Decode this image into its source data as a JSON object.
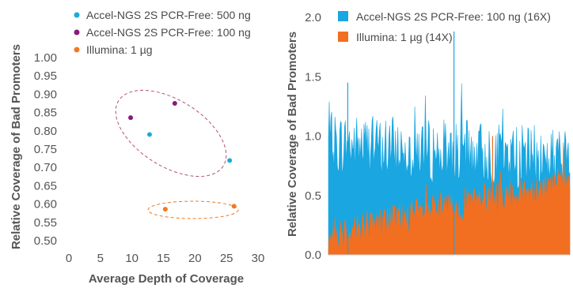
{
  "chart_data": [
    {
      "type": "scatter",
      "xlabel": "Average Depth of Coverage",
      "ylabel": "Relative Coverage of Bad Promoters",
      "xlim": [
        0,
        30
      ],
      "ylim": [
        0.5,
        1.0
      ],
      "xticks": [
        "0",
        "5",
        "10",
        "15",
        "20",
        "25",
        "30"
      ],
      "yticks": [
        "0.50",
        "0.55",
        "0.60",
        "0.65",
        "0.70",
        "0.75",
        "0.80",
        "0.85",
        "0.90",
        "0.95",
        "1.00"
      ],
      "grid": false,
      "legend_position": "top-left",
      "series": [
        {
          "name": "Accel-NGS 2S PCR-Free: 500 ng",
          "color": "#1aabd9",
          "points": [
            {
              "x": 12.8,
              "y": 0.79
            },
            {
              "x": 25.5,
              "y": 0.719
            }
          ]
        },
        {
          "name": "Accel-NGS 2S PCR-Free: 100 ng",
          "color": "#8a1a7a",
          "points": [
            {
              "x": 9.8,
              "y": 0.836
            },
            {
              "x": 16.8,
              "y": 0.875
            }
          ]
        },
        {
          "name": "Illumina: 1 µg",
          "color": "#f07a22",
          "points": [
            {
              "x": 15.3,
              "y": 0.586
            },
            {
              "x": 26.2,
              "y": 0.594
            }
          ]
        }
      ]
    },
    {
      "type": "area",
      "xlabel": "",
      "ylabel": "Relative Coverage of Bad Promoters",
      "ylim": [
        0,
        2.0
      ],
      "yticks": [
        "0.0",
        "0.5",
        "1.0",
        "1.5",
        "2.0"
      ],
      "grid": false,
      "legend_position": "top-left",
      "series": [
        {
          "name": "Accel-NGS 2S PCR-Free: 100 ng (16X)",
          "color": "#1aa6e0",
          "baseline_start": 0.85,
          "baseline_end": 0.72,
          "peak": 1.88
        },
        {
          "name": "Illumina: 1 µg (14X)",
          "color": "#f26f21",
          "baseline_start": 0.18,
          "baseline_end": 0.62,
          "peak": 1.0
        }
      ]
    }
  ]
}
